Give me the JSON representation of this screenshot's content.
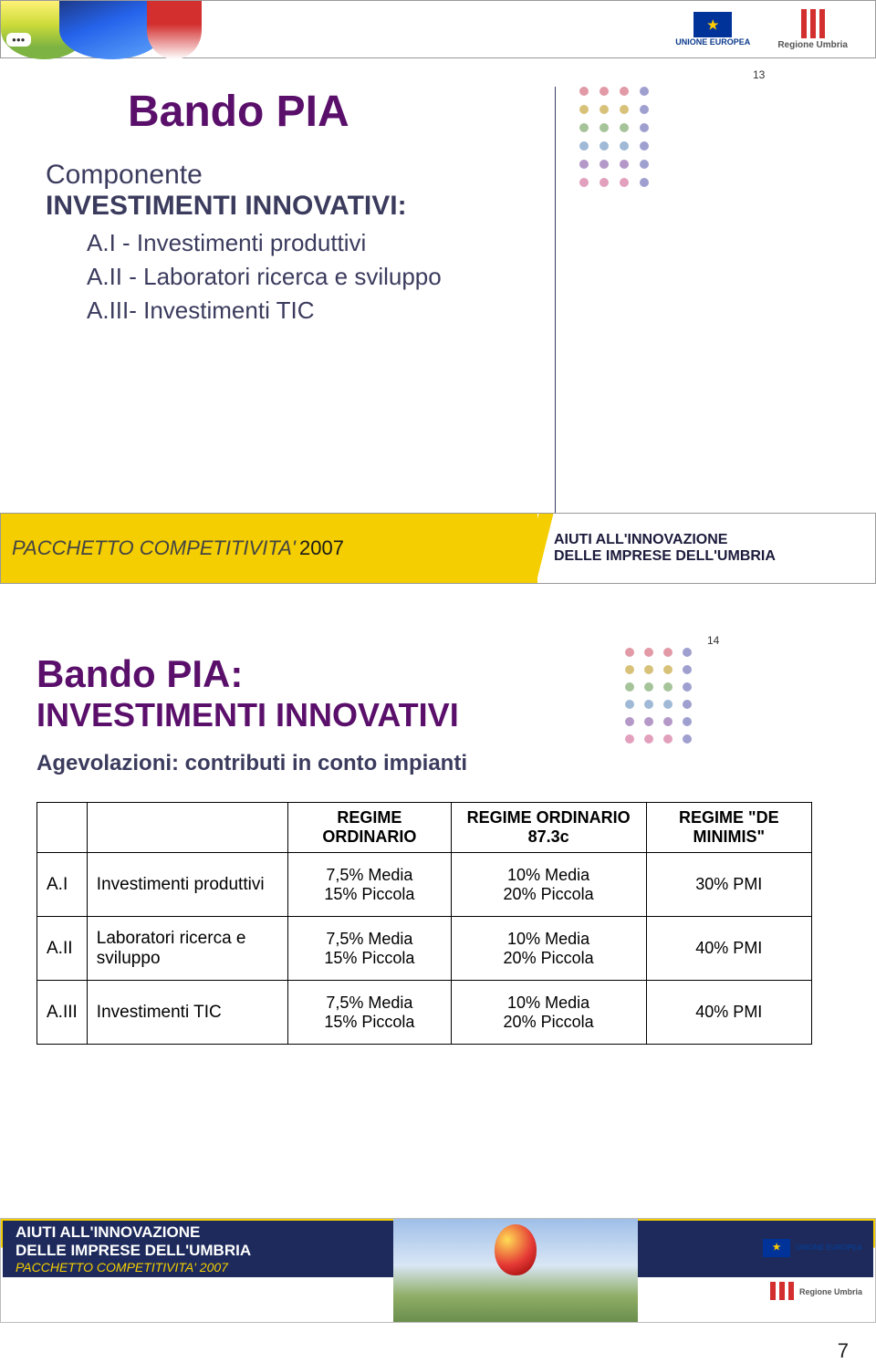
{
  "header": {
    "eu_label": "UNIONE EUROPEA",
    "umbria_label": "Regione Umbria"
  },
  "slide1": {
    "title": "Bando PIA",
    "subhead1": "Componente",
    "subhead2": "INVESTIMENTI INNOVATIVI:",
    "items": [
      "A.I  - Investimenti produttivi",
      "A.II - Laboratori ricerca e sviluppo",
      "A.III- Investimenti TIC"
    ],
    "slide_num": "13",
    "footer_left": "PACCHETTO COMPETITIVITA'",
    "footer_year": "2007",
    "footer_right1": "AIUTI ALL'INNOVAZIONE",
    "footer_right2": "DELLE IMPRESE DELL'UMBRIA",
    "dot_colors": [
      "#e29aa7",
      "#e29aa7",
      "#e29aa7",
      "#a0a0d0",
      "#d8c27a",
      "#d8c27a",
      "#d8c27a",
      "#a0a0d0",
      "#a6c49a",
      "#a6c49a",
      "#a6c49a",
      "#a0a0d0",
      "#9fb9d6",
      "#9fb9d6",
      "#9fb9d6",
      "#a0a0d0",
      "#b498c8",
      "#b498c8",
      "#b498c8",
      "#a0a0d0",
      "#e2a0bd",
      "#e2a0bd",
      "#e2a0bd",
      "#a0a0d0"
    ]
  },
  "slide2": {
    "title": "Bando PIA:",
    "subtitle": "INVESTIMENTI INNOVATIVI",
    "agevo": "Agevolazioni: contributi in conto impianti",
    "slide_num": "14",
    "table": {
      "headers": [
        "",
        "",
        "REGIME ORDINARIO",
        "REGIME ORDINARIO 87.3c",
        "REGIME \"DE MINIMIS\""
      ],
      "rows": [
        {
          "code": "A.I",
          "label": "Investimenti produttivi",
          "c1": "7,5% Media\n15% Piccola",
          "c2": "10% Media\n20% Piccola",
          "c3": "30% PMI"
        },
        {
          "code": "A.II",
          "label": "Laboratori  ricerca e sviluppo",
          "c1": "7,5% Media\n15% Piccola",
          "c2": "10% Media\n20% Piccola",
          "c3": "40% PMI"
        },
        {
          "code": "A.III",
          "label": "Investimenti TIC",
          "c1": "7,5% Media\n15% Piccola",
          "c2": "10% Media\n20% Piccola",
          "c3": "40% PMI"
        }
      ]
    },
    "dot_colors": [
      "#e29aa7",
      "#e29aa7",
      "#e29aa7",
      "#a0a0d0",
      "#d8c27a",
      "#d8c27a",
      "#d8c27a",
      "#a0a0d0",
      "#a6c49a",
      "#a6c49a",
      "#a6c49a",
      "#a0a0d0",
      "#9fb9d6",
      "#9fb9d6",
      "#9fb9d6",
      "#a0a0d0",
      "#b498c8",
      "#b498c8",
      "#b498c8",
      "#a0a0d0",
      "#e2a0bd",
      "#e2a0bd",
      "#e2a0bd",
      "#a0a0d0"
    ]
  },
  "bottom": {
    "line1": "AIUTI ALL'INNOVAZIONE",
    "line2": "DELLE IMPRESE DELL'UMBRIA",
    "line3": "PACCHETTO COMPETITIVITA' 2007",
    "eu_label": "UNIONE EUROPEA",
    "umbria_label": "Regione Umbria"
  },
  "page_number": "7"
}
